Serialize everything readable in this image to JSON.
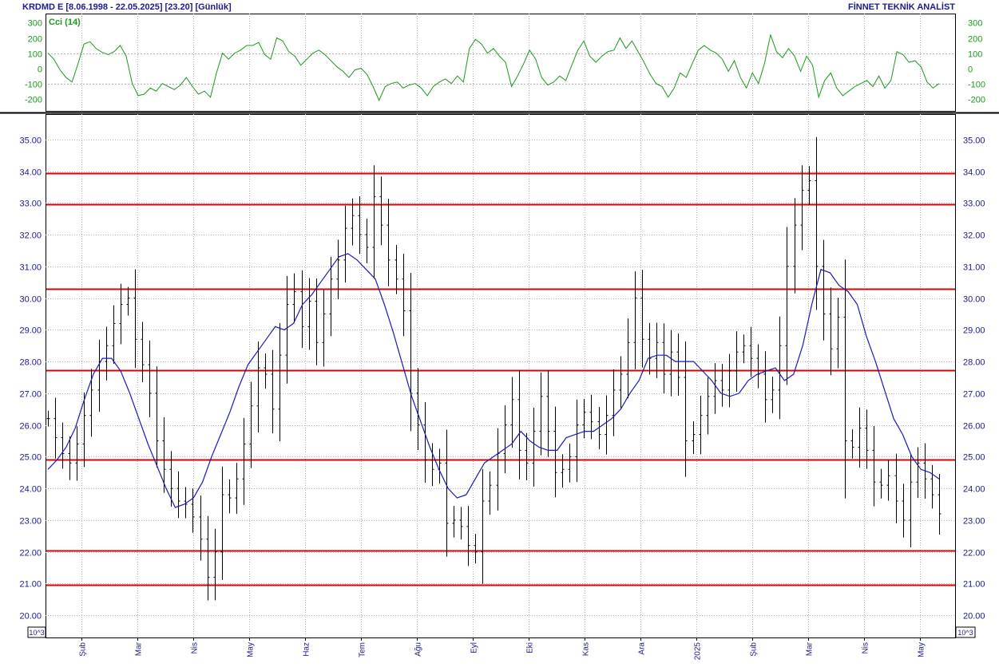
{
  "header": {
    "title": "KRDMD E  [8.06.1998 - 22.05.2025]  [23.20]  [Günlük]",
    "brand": "FİNNET TEKNİK ANALİST"
  },
  "colors": {
    "price_bars": "#000000",
    "moving_average": "#1a1ab8",
    "resistance_lines": "#dd0000",
    "cci_line": "#1a9a1a",
    "axis_text": "#1a1a8c"
  },
  "chart_data": [
    {
      "type": "line",
      "title": "",
      "indicator_label": "Cci (14)",
      "ylim": [
        -280,
        360
      ],
      "y_ticks": [
        300,
        200,
        100,
        0,
        -100,
        -200
      ],
      "reference_lines": [
        100,
        -100
      ],
      "series": [
        {
          "name": "Cci (14)",
          "values": [
            100,
            60,
            -10,
            -60,
            -90,
            30,
            160,
            175,
            130,
            105,
            90,
            110,
            150,
            80,
            -100,
            -180,
            -170,
            -130,
            -150,
            -100,
            -120,
            -140,
            -110,
            -60,
            -120,
            -170,
            -150,
            -190,
            -30,
            100,
            60,
            100,
            120,
            150,
            150,
            170,
            90,
            60,
            200,
            180,
            110,
            80,
            20,
            60,
            100,
            120,
            90,
            50,
            10,
            -20,
            -60,
            -10,
            0,
            -40,
            -120,
            -210,
            -120,
            -100,
            -90,
            -130,
            -110,
            -100,
            -130,
            -180,
            -120,
            -90,
            -70,
            -100,
            -50,
            -90,
            130,
            190,
            160,
            100,
            130,
            80,
            40,
            -120,
            -50,
            30,
            120,
            60,
            -60,
            -110,
            -90,
            -50,
            -80,
            20,
            120,
            180,
            80,
            40,
            80,
            110,
            120,
            200,
            130,
            180,
            110,
            40,
            -40,
            -100,
            -120,
            -190,
            -130,
            -30,
            -60,
            30,
            120,
            150,
            120,
            100,
            60,
            -20,
            50,
            -60,
            -130,
            -30,
            -100,
            30,
            220,
            110,
            70,
            130,
            80,
            -20,
            80,
            20,
            -190,
            -80,
            -30,
            -130,
            -180,
            -150,
            -120,
            -100,
            -80,
            -120,
            -50,
            -130,
            -80,
            110,
            90,
            40,
            50,
            10,
            -90,
            -130,
            -100
          ]
        }
      ]
    },
    {
      "type": "bar",
      "subtype": "ohlc-daily-with-moving-average",
      "title": "",
      "xlabel": "",
      "ylabel": "",
      "ylim": [
        19.3,
        35.8
      ],
      "y_ticks": [
        "35.00",
        "34.00",
        "33.00",
        "32.00",
        "31.00",
        "30.00",
        "29.00",
        "28.00",
        "27.00",
        "26.00",
        "25.00",
        "24.00",
        "23.00",
        "22.00",
        "21.00",
        "20.00"
      ],
      "y_unit_label": "10^3",
      "x_month_labels": [
        "Şub",
        "Mar",
        "Nis",
        "May",
        "Haz",
        "Tem",
        "Ağu",
        "Eyl",
        "Eki",
        "Kas",
        "Ara",
        "2025",
        "Şub",
        "Mar",
        "Nis",
        "May"
      ],
      "horizontal_lines": [
        33.95,
        32.95,
        30.28,
        27.73,
        24.9,
        22.05,
        20.95
      ],
      "series": [
        {
          "name": "Close",
          "values": [
            26.2,
            25.6,
            25.1,
            24.8,
            25.4,
            26.3,
            27.1,
            28.0,
            28.5,
            29.2,
            29.8,
            30.0,
            28.7,
            27.9,
            27.0,
            25.5,
            24.6,
            24.0,
            23.6,
            23.5,
            23.1,
            22.4,
            21.2,
            22.0,
            23.8,
            23.7,
            24.3,
            25.4,
            26.6,
            27.8,
            27.6,
            26.5,
            28.2,
            29.8,
            30.2,
            29.1,
            29.9,
            28.6,
            29.5,
            30.6,
            31.2,
            32.2,
            32.6,
            32.0,
            31.6,
            33.2,
            32.3,
            31.2,
            30.6,
            29.6,
            27.0,
            26.0,
            24.9,
            24.6,
            24.8,
            22.9,
            23.0,
            22.8,
            22.2,
            22.0,
            23.6,
            24.1,
            25.1,
            26.0,
            26.8,
            25.2,
            24.8,
            25.8,
            26.9,
            25.8,
            24.5,
            24.6,
            25.0,
            26.0,
            26.4,
            26.1,
            25.7,
            26.3,
            27.1,
            27.6,
            28.6,
            30.0,
            28.7,
            28.1,
            28.6,
            27.6,
            28.3,
            27.5,
            25.5,
            25.7,
            26.3,
            26.9,
            27.4,
            27.1,
            27.7,
            28.3,
            28.5,
            28.1,
            27.6,
            26.8,
            27.1,
            28.5,
            31.0,
            32.3,
            33.4,
            33.7,
            31.0,
            29.5,
            28.4,
            29.4,
            25.5,
            25.3,
            25.9,
            25.2,
            24.2,
            24.1,
            24.4,
            23.6,
            23.0,
            24.2,
            24.8,
            24.3,
            23.8,
            23.2
          ]
        },
        {
          "name": "Moving average",
          "values": [
            24.6,
            24.9,
            25.3,
            25.9,
            26.8,
            27.6,
            28.1,
            28.1,
            27.7,
            27.0,
            26.2,
            25.4,
            24.7,
            24.0,
            23.4,
            23.5,
            23.7,
            24.2,
            25.0,
            25.7,
            26.4,
            27.2,
            27.9,
            28.3,
            28.7,
            29.1,
            29.0,
            29.2,
            29.8,
            30.1,
            30.5,
            30.9,
            31.3,
            31.4,
            31.2,
            30.9,
            30.6,
            29.8,
            28.9,
            27.9,
            26.9,
            26.1,
            25.3,
            24.6,
            24.0,
            23.7,
            23.8,
            24.3,
            24.8,
            25.0,
            25.2,
            25.4,
            25.8,
            25.5,
            25.3,
            25.2,
            25.2,
            25.6,
            25.7,
            25.8,
            25.8,
            26.0,
            26.2,
            26.5,
            27.0,
            27.4,
            28.1,
            28.2,
            28.2,
            28.0,
            28.0,
            28.0,
            27.7,
            27.4,
            27.0,
            26.9,
            27.0,
            27.4,
            27.6,
            27.7,
            27.8,
            27.4,
            27.6,
            28.5,
            29.8,
            30.9,
            30.8,
            30.4,
            30.2,
            29.8,
            28.8,
            28.0,
            27.1,
            26.2,
            25.7,
            25.0,
            24.6,
            24.5,
            24.3
          ]
        }
      ]
    }
  ]
}
